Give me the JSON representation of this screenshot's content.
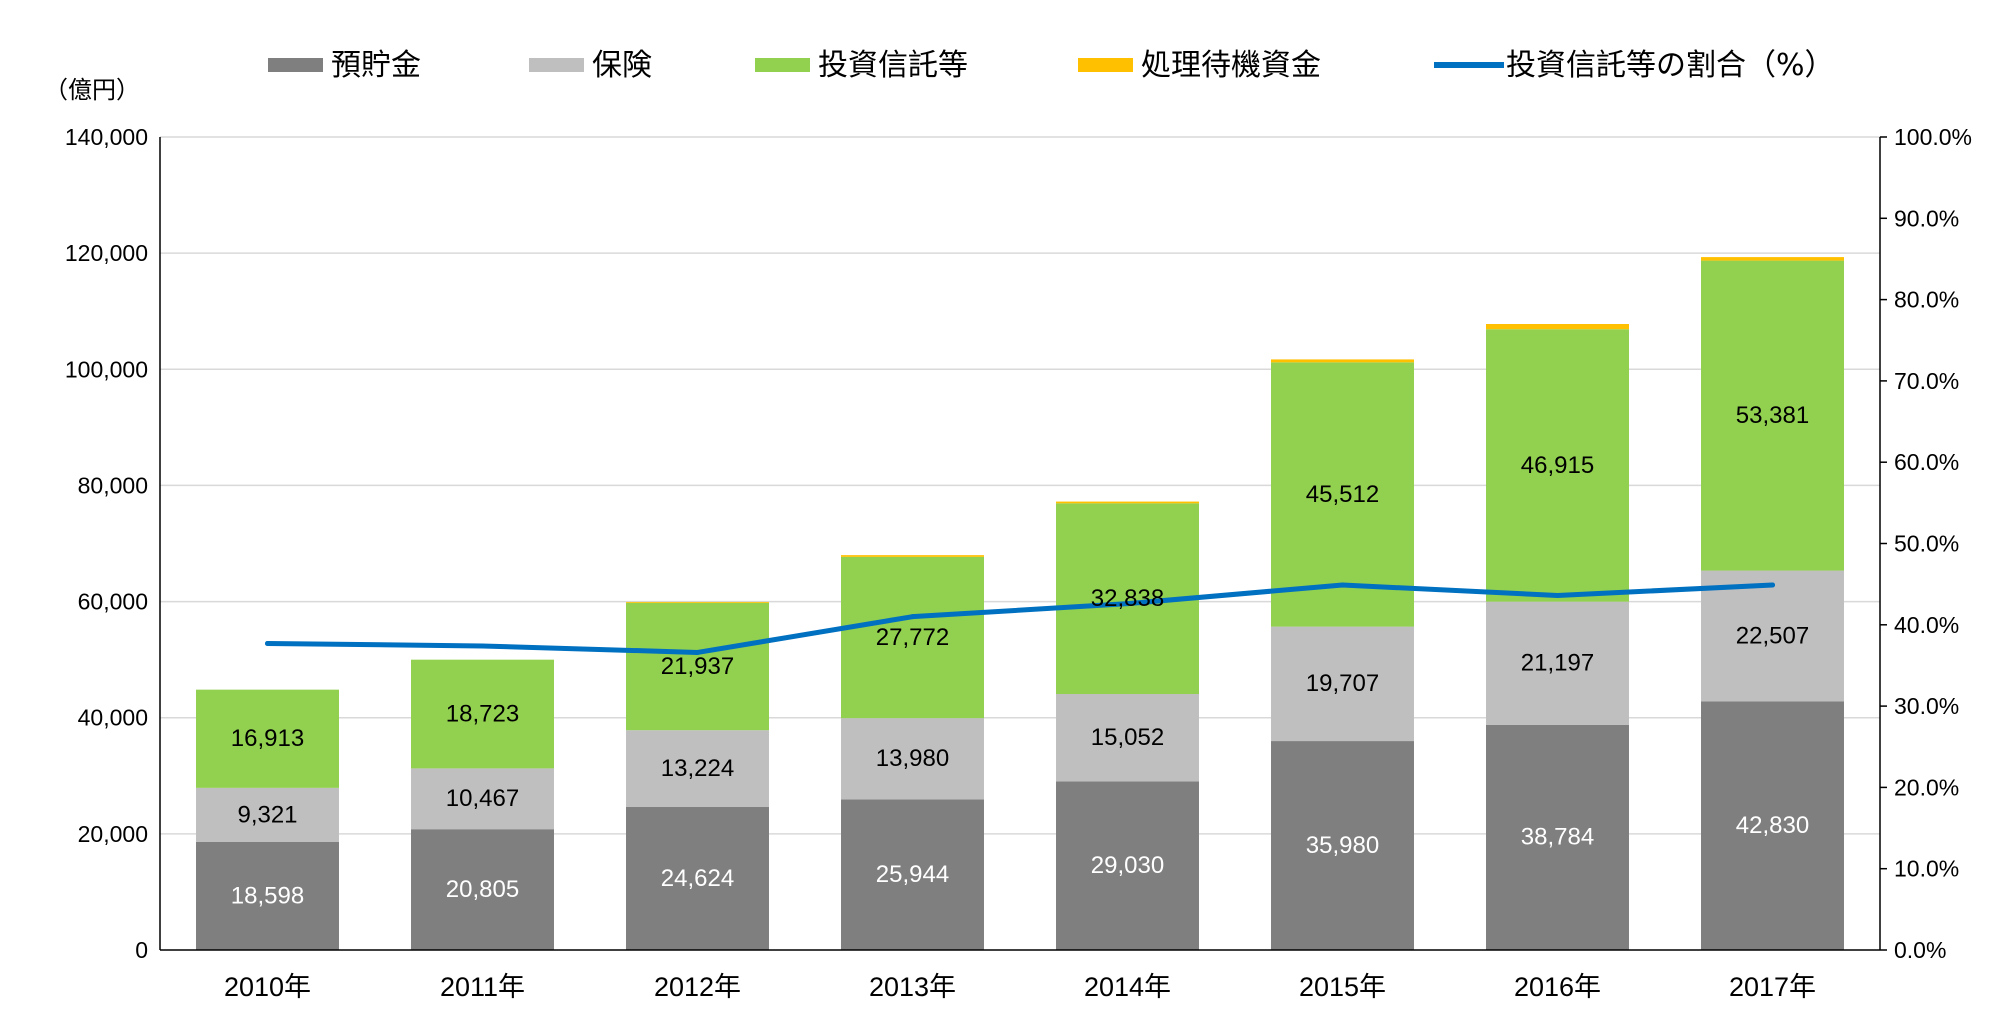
{
  "chart_data": {
    "type": "bar",
    "stacked": true,
    "unit_label": "（億円）",
    "categories": [
      "2010年",
      "2011年",
      "2012年",
      "2013年",
      "2014年",
      "2015年",
      "2016年",
      "2017年"
    ],
    "series": [
      {
        "name": "預貯金",
        "color": "#7f7f7f",
        "label_color": "#ffffff",
        "values": [
          18598,
          20805,
          24624,
          25944,
          29030,
          35980,
          38784,
          42830
        ],
        "labels": [
          "18,598",
          "20,805",
          "24,624",
          "25,944",
          "29,030",
          "35,980",
          "38,784",
          "42,830"
        ]
      },
      {
        "name": "保険",
        "color": "#bfbfbf",
        "label_color": "#000000",
        "values": [
          9321,
          10467,
          13224,
          13980,
          15052,
          19707,
          21197,
          22507
        ],
        "labels": [
          "9,321",
          "10,467",
          "13,224",
          "13,980",
          "15,052",
          "19,707",
          "21,197",
          "22,507"
        ]
      },
      {
        "name": "投資信託等",
        "color": "#92d050",
        "label_color": "#000000",
        "values": [
          16913,
          18723,
          21937,
          27772,
          32838,
          45512,
          46915,
          53381
        ],
        "labels": [
          "16,913",
          "18,723",
          "21,937",
          "27,772",
          "32,838",
          "45,512",
          "46,915",
          "53,381"
        ]
      },
      {
        "name": "処理待機資金",
        "color": "#ffc000",
        "values": [
          0,
          0,
          150,
          300,
          300,
          500,
          900,
          600
        ]
      }
    ],
    "line_series": {
      "name": "投資信託等の割合（%）",
      "color": "#0070c0",
      "axis": "right",
      "values": [
        37.7,
        37.4,
        36.6,
        41.0,
        42.6,
        44.9,
        43.6,
        44.9
      ]
    },
    "ylim": [
      0,
      140000
    ],
    "yticks": [
      0,
      20000,
      40000,
      60000,
      80000,
      100000,
      120000,
      140000
    ],
    "ytick_labels": [
      "0",
      "20,000",
      "40,000",
      "60,000",
      "80,000",
      "100,000",
      "120,000",
      "140,000"
    ],
    "y2lim": [
      0,
      100
    ],
    "y2ticks": [
      0,
      10,
      20,
      30,
      40,
      50,
      60,
      70,
      80,
      90,
      100
    ],
    "y2tick_labels": [
      "0.0%",
      "10.0%",
      "20.0%",
      "30.0%",
      "40.0%",
      "50.0%",
      "60.0%",
      "70.0%",
      "80.0%",
      "90.0%",
      "100.0%"
    ],
    "grid": true,
    "legend_position": "top"
  }
}
